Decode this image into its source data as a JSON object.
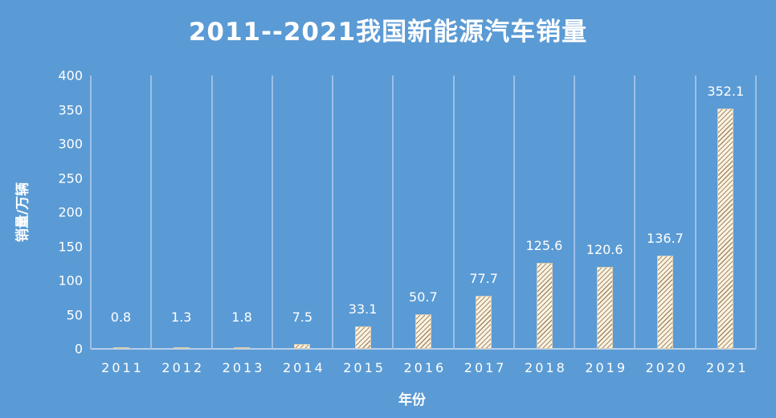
{
  "chart_data": {
    "type": "bar",
    "title": "2011--2021我国新能源汽车销量",
    "xlabel": "年份",
    "ylabel": "销量/万辆",
    "categories": [
      "2011",
      "2012",
      "2013",
      "2014",
      "2015",
      "2016",
      "2017",
      "2018",
      "2019",
      "2020",
      "2021"
    ],
    "values": [
      0.8,
      1.3,
      1.8,
      7.5,
      33.1,
      50.7,
      77.7,
      125.6,
      120.6,
      136.7,
      352.1
    ],
    "data_labels": [
      "0.8",
      "1.3",
      "1.8",
      "7.5",
      "33.1",
      "50.7",
      "77.7",
      "125.6",
      "120.6",
      "136.7",
      "352.1"
    ],
    "ylim": [
      0,
      400
    ],
    "yticks": [
      "0",
      "50",
      "100",
      "150",
      "200",
      "250",
      "300",
      "350",
      "400"
    ],
    "grid": "vertical category separators",
    "legend": "none",
    "colors": {
      "background": "#5b9bd5",
      "bar_fill": "#fbf3e3",
      "bar_hatch": "#a58a68",
      "text": "#ffffff"
    }
  }
}
